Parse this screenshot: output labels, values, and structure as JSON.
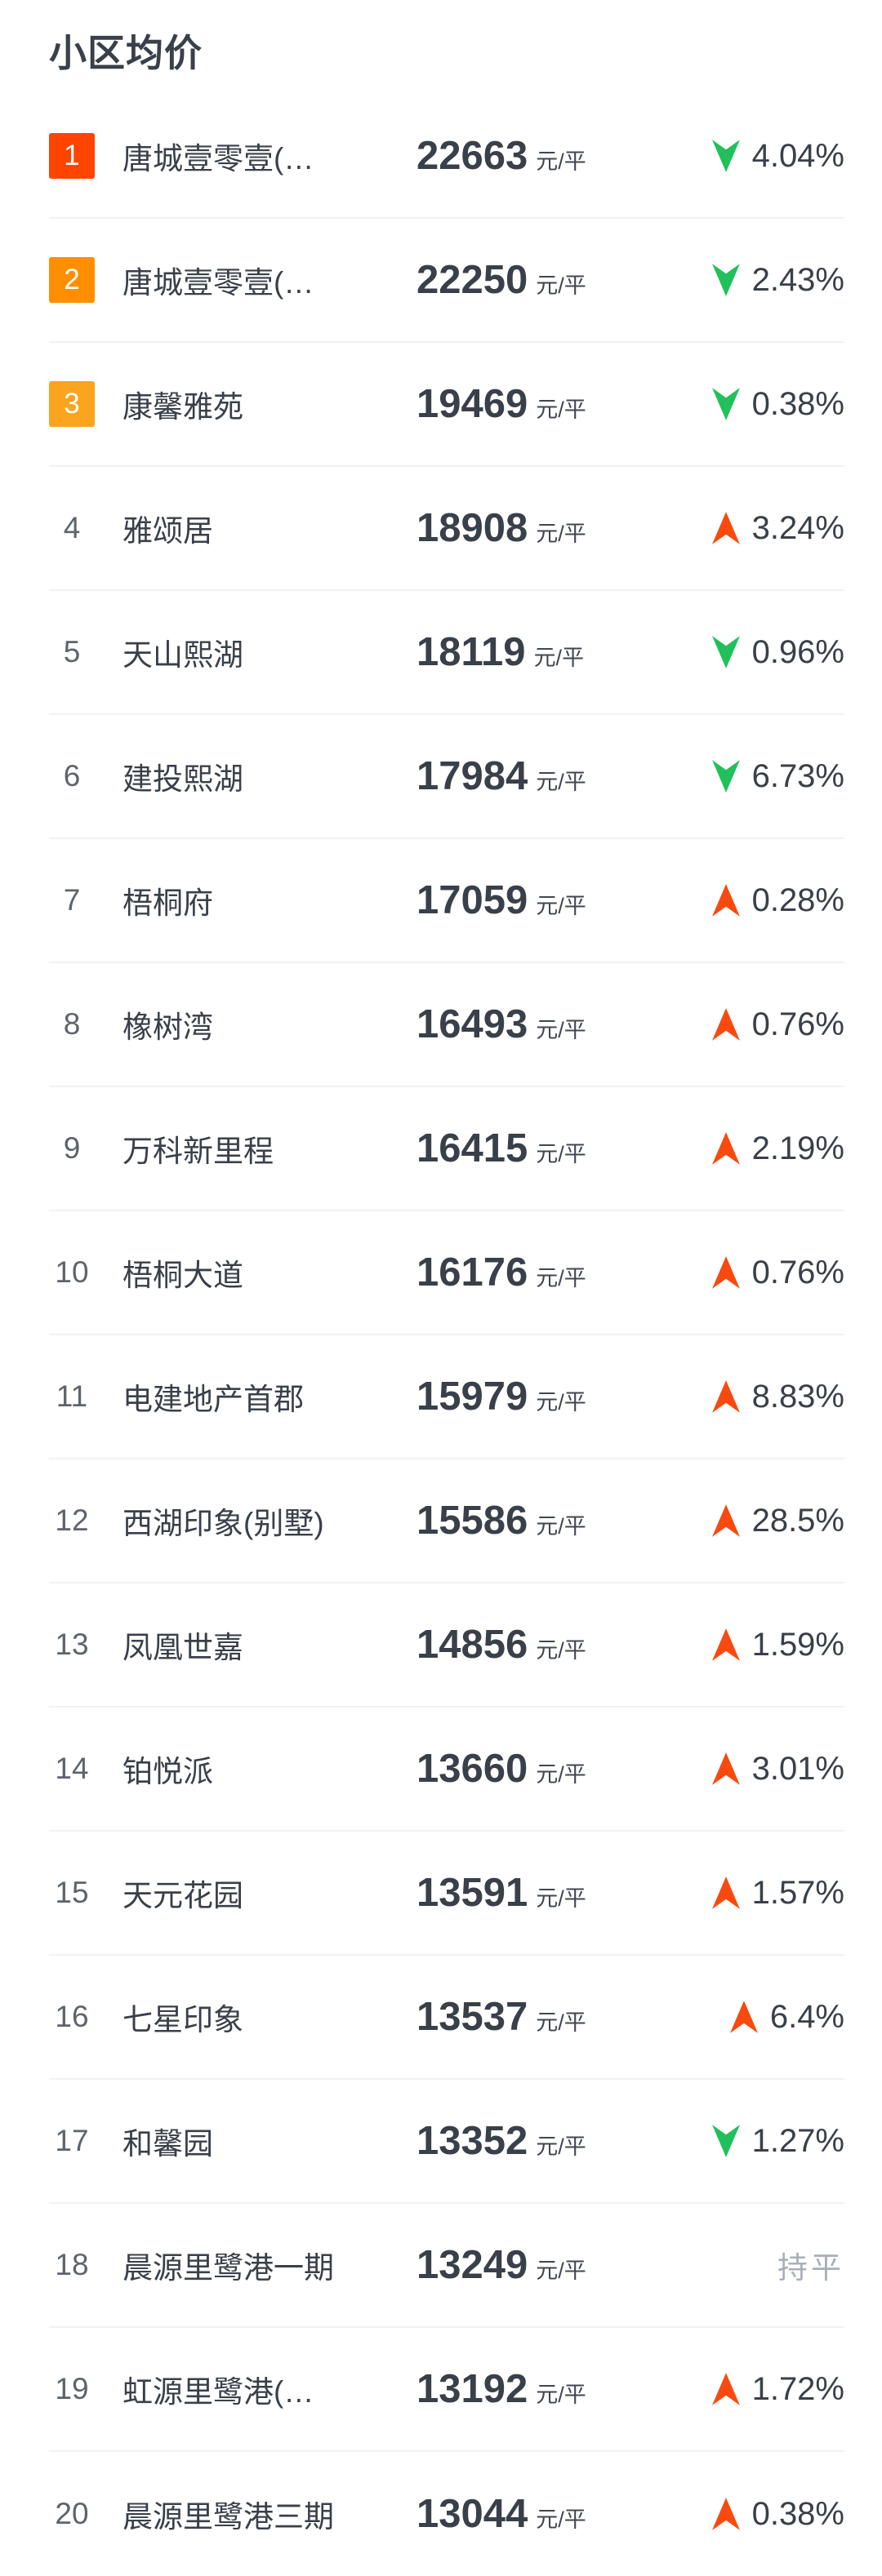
{
  "title": "小区均价",
  "unit_label": "元/平",
  "flat_label": "持平",
  "colors": {
    "up_arrow": "#F84A0E",
    "down_arrow": "#21C05B",
    "rank1_badge": "#FF4400",
    "rank2_badge": "#FF8E00",
    "rank3_badge": "#FBA41F",
    "dark_text": "#394049",
    "flat_text": "#A9AFB8"
  },
  "list": {
    "rows": [
      {
        "rank": "1",
        "name": "唐城壹零壹(…",
        "price": "22663",
        "change": "4.04%",
        "direction": "down"
      },
      {
        "rank": "2",
        "name": "唐城壹零壹(…",
        "price": "22250",
        "change": "2.43%",
        "direction": "down"
      },
      {
        "rank": "3",
        "name": "康馨雅苑",
        "price": "19469",
        "change": "0.38%",
        "direction": "down"
      },
      {
        "rank": "4",
        "name": "雅颂居",
        "price": "18908",
        "change": "3.24%",
        "direction": "up"
      },
      {
        "rank": "5",
        "name": "天山熙湖",
        "price": "18119",
        "change": "0.96%",
        "direction": "down"
      },
      {
        "rank": "6",
        "name": "建投熙湖",
        "price": "17984",
        "change": "6.73%",
        "direction": "down"
      },
      {
        "rank": "7",
        "name": "梧桐府",
        "price": "17059",
        "change": "0.28%",
        "direction": "up"
      },
      {
        "rank": "8",
        "name": "橡树湾",
        "price": "16493",
        "change": "0.76%",
        "direction": "up"
      },
      {
        "rank": "9",
        "name": "万科新里程",
        "price": "16415",
        "change": "2.19%",
        "direction": "up"
      },
      {
        "rank": "10",
        "name": "梧桐大道",
        "price": "16176",
        "change": "0.76%",
        "direction": "up"
      },
      {
        "rank": "11",
        "name": "电建地产首郡",
        "price": "15979",
        "change": "8.83%",
        "direction": "up"
      },
      {
        "rank": "12",
        "name": "西湖印象(别墅)",
        "price": "15586",
        "change": "28.5%",
        "direction": "up"
      },
      {
        "rank": "13",
        "name": "凤凰世嘉",
        "price": "14856",
        "change": "1.59%",
        "direction": "up"
      },
      {
        "rank": "14",
        "name": "铂悦派",
        "price": "13660",
        "change": "3.01%",
        "direction": "up"
      },
      {
        "rank": "15",
        "name": "天元花园",
        "price": "13591",
        "change": "1.57%",
        "direction": "up"
      },
      {
        "rank": "16",
        "name": "七星印象",
        "price": "13537",
        "change": "6.4%",
        "direction": "up"
      },
      {
        "rank": "17",
        "name": "和馨园",
        "price": "13352",
        "change": "1.27%",
        "direction": "down"
      },
      {
        "rank": "18",
        "name": "晨源里鹭港一期",
        "price": "13249",
        "change": "持平",
        "direction": "flat"
      },
      {
        "rank": "19",
        "name": "虹源里鹭港(…",
        "price": "13192",
        "change": "1.72%",
        "direction": "up"
      },
      {
        "rank": "20",
        "name": "晨源里鹭港三期",
        "price": "13044",
        "change": "0.38%",
        "direction": "up"
      }
    ]
  }
}
